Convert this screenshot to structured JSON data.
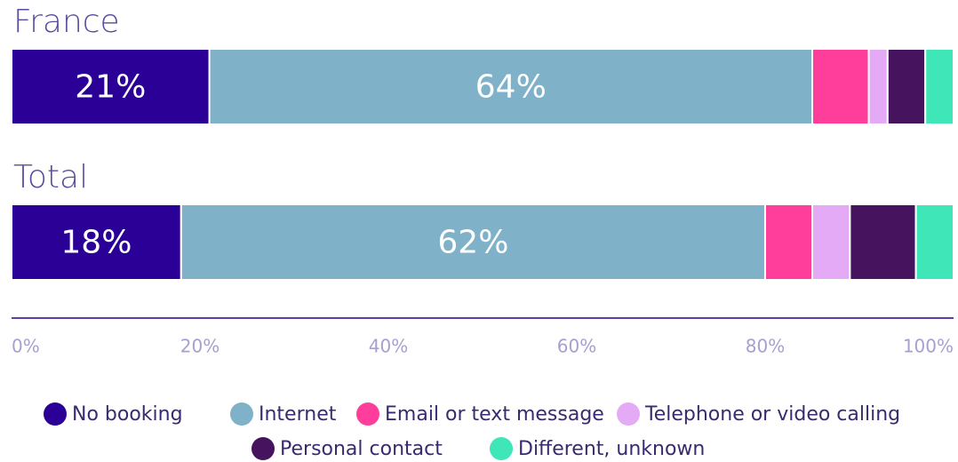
{
  "chart_data": {
    "type": "stacked-barh",
    "categories": [
      "France",
      "Total"
    ],
    "series": [
      {
        "name": "No booking",
        "color": "#2a0096",
        "values": [
          21,
          18
        ],
        "value_labels": [
          "21%",
          "18%"
        ]
      },
      {
        "name": "Internet",
        "color": "#7fb1c8",
        "values": [
          64,
          62
        ],
        "value_labels": [
          "64%",
          "62%"
        ]
      },
      {
        "name": "Email or text message",
        "color": "#ff3d9a",
        "values": [
          6,
          5
        ]
      },
      {
        "name": "Telephone or video calling",
        "color": "#e5aaf5",
        "values": [
          2,
          4
        ]
      },
      {
        "name": "Personal contact",
        "color": "#46145e",
        "values": [
          4,
          7
        ]
      },
      {
        "name": "Different, unknown",
        "color": "#3ee6b8",
        "values": [
          3,
          4
        ]
      }
    ],
    "xlim": [
      0,
      100
    ],
    "xticks": [
      {
        "value": 0,
        "label": "0%"
      },
      {
        "value": 20,
        "label": "20%"
      },
      {
        "value": 40,
        "label": "40%"
      },
      {
        "value": 60,
        "label": "60%"
      },
      {
        "value": 80,
        "label": "80%"
      },
      {
        "value": 100,
        "label": "100%"
      }
    ]
  }
}
